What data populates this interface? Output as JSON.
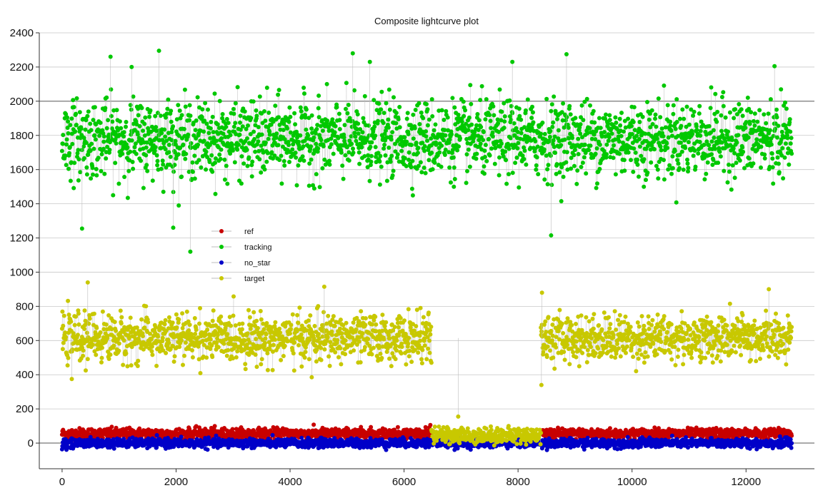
{
  "chart_data": {
    "type": "scatter",
    "title": "Composite lightcurve plot",
    "xlabel": "",
    "ylabel": "",
    "xlim": [
      -400,
      13200
    ],
    "ylim": [
      -150,
      2400
    ],
    "xticks": [
      0,
      2000,
      4000,
      6000,
      8000,
      10000,
      12000
    ],
    "yticks": [
      0,
      200,
      400,
      600,
      800,
      1000,
      1200,
      1400,
      1600,
      1800,
      2000,
      2200,
      2400
    ],
    "grid": true,
    "point_count": 12800,
    "legend_position": "upper-left-center",
    "series": [
      {
        "name": "ref",
        "color": "#c80000",
        "segments": [
          {
            "x_start": 0,
            "x_end": 6480,
            "mean": 55,
            "spread_low": 30,
            "spread_high": 110
          },
          {
            "x_start": 8400,
            "x_end": 12800,
            "mean": 55,
            "spread_low": 30,
            "spread_high": 105
          }
        ]
      },
      {
        "name": "tracking",
        "color": "#00c800",
        "segments": [
          {
            "x_start": 0,
            "x_end": 12800,
            "mean": 1780,
            "spread_low": 1500,
            "spread_high": 2050
          }
        ],
        "outliers": [
          {
            "x": 1700,
            "y": 2295
          },
          {
            "x": 850,
            "y": 2260
          },
          {
            "x": 5100,
            "y": 2280
          },
          {
            "x": 8850,
            "y": 2275
          },
          {
            "x": 2250,
            "y": 1120
          },
          {
            "x": 8580,
            "y": 1215
          },
          {
            "x": 350,
            "y": 1255
          },
          {
            "x": 1950,
            "y": 1260
          },
          {
            "x": 5400,
            "y": 2230
          },
          {
            "x": 12500,
            "y": 2205
          },
          {
            "x": 1220,
            "y": 2200
          },
          {
            "x": 7900,
            "y": 2230
          }
        ]
      },
      {
        "name": "no_star",
        "color": "#0000c8",
        "segments": [
          {
            "x_start": 0,
            "x_end": 12800,
            "mean": 0,
            "spread_low": -30,
            "spread_high": 35
          }
        ]
      },
      {
        "name": "target",
        "color": "#c8c800",
        "segments": [
          {
            "x_start": 0,
            "x_end": 6480,
            "mean": 615,
            "spread_low": 450,
            "spread_high": 790
          },
          {
            "x_start": 6480,
            "x_end": 8400,
            "mean": 45,
            "spread_low": -5,
            "spread_high": 110
          },
          {
            "x_start": 8400,
            "x_end": 12800,
            "mean": 615,
            "spread_low": 460,
            "spread_high": 790
          }
        ],
        "outliers": [
          {
            "x": 450,
            "y": 940
          },
          {
            "x": 4600,
            "y": 915
          },
          {
            "x": 170,
            "y": 375
          },
          {
            "x": 4380,
            "y": 385
          },
          {
            "x": 8420,
            "y": 880
          },
          {
            "x": 8410,
            "y": 340
          },
          {
            "x": 12400,
            "y": 900
          },
          {
            "x": 6950,
            "y": 155
          }
        ]
      }
    ]
  }
}
